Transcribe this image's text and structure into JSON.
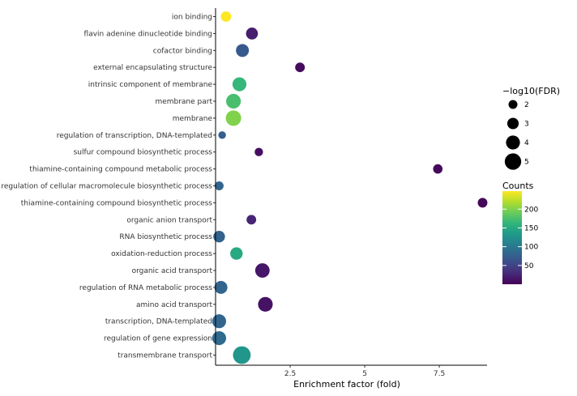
{
  "chart_data": {
    "type": "scatter",
    "title": "",
    "xlabel": "Enrichment factor (fold)",
    "ylabel": "",
    "xlim": [
      0.0,
      9.1
    ],
    "xticks": [
      {
        "value": 2.5,
        "label": "2.5"
      },
      {
        "value": 5.0,
        "label": "5"
      },
      {
        "value": 7.5,
        "label": "7.5"
      }
    ],
    "categories": [
      "ion binding",
      "flavin adenine dinucleotide binding",
      "cofactor binding",
      "external encapsulating structure",
      "intrinsic component of membrane",
      "membrane part",
      "membrane",
      "regulation of transcription, DNA-templated",
      "sulfur compound biosynthetic process",
      "thiamine-containing compound metabolic process",
      "regulation of cellular macromolecule biosynthetic process",
      "thiamine-containing compound biosynthetic process",
      "organic anion transport",
      "RNA biosynthetic process",
      "oxidation-reduction process",
      "organic acid transport",
      "regulation of RNA metabolic process",
      "amino acid transport",
      "transcription, DNA-templated",
      "regulation of gene expression",
      "transmembrane transport"
    ],
    "points": [
      {
        "category": "ion binding",
        "x": 0.35,
        "counts": 248,
        "neglog10FDR": 2.6
      },
      {
        "category": "flavin adenine dinucleotide binding",
        "x": 1.22,
        "counts": 20,
        "neglog10FDR": 3.2
      },
      {
        "category": "cofactor binding",
        "x": 0.9,
        "counts": 70,
        "neglog10FDR": 3.6
      },
      {
        "category": "external encapsulating structure",
        "x": 2.83,
        "counts": 8,
        "neglog10FDR": 2.3
      },
      {
        "category": "intrinsic component of membrane",
        "x": 0.8,
        "counts": 165,
        "neglog10FDR": 4.0
      },
      {
        "category": "membrane part",
        "x": 0.6,
        "counts": 175,
        "neglog10FDR": 4.3
      },
      {
        "category": "membrane",
        "x": 0.6,
        "counts": 200,
        "neglog10FDR": 4.6
      },
      {
        "category": "regulation of transcription, DNA-templated",
        "x": 0.22,
        "counts": 75,
        "neglog10FDR": 1.5
      },
      {
        "category": "sulfur compound biosynthetic process",
        "x": 1.45,
        "counts": 10,
        "neglog10FDR": 1.8
      },
      {
        "category": "thiamine-containing compound metabolic process",
        "x": 7.45,
        "counts": 5,
        "neglog10FDR": 2.2
      },
      {
        "category": "regulation of cellular macromolecule biosynthetic process",
        "x": 0.12,
        "counts": 80,
        "neglog10FDR": 2.0
      },
      {
        "category": "thiamine-containing compound biosynthetic process",
        "x": 8.95,
        "counts": 5,
        "neglog10FDR": 2.3
      },
      {
        "category": "organic anion transport",
        "x": 1.2,
        "counts": 25,
        "neglog10FDR": 2.3
      },
      {
        "category": "RNA biosynthetic process",
        "x": 0.12,
        "counts": 78,
        "neglog10FDR": 3.1
      },
      {
        "category": "oxidation-reduction process",
        "x": 0.7,
        "counts": 150,
        "neglog10FDR": 3.4
      },
      {
        "category": "organic acid transport",
        "x": 1.57,
        "counts": 15,
        "neglog10FDR": 4.2
      },
      {
        "category": "regulation of RNA metabolic process",
        "x": 0.18,
        "counts": 80,
        "neglog10FDR": 3.6
      },
      {
        "category": "amino acid transport",
        "x": 1.67,
        "counts": 12,
        "neglog10FDR": 4.3
      },
      {
        "category": "transcription, DNA-templated",
        "x": 0.12,
        "counts": 80,
        "neglog10FDR": 4.0
      },
      {
        "category": "regulation of gene expression",
        "x": 0.12,
        "counts": 85,
        "neglog10FDR": 4.0
      },
      {
        "category": "transmembrane transport",
        "x": 0.88,
        "counts": 130,
        "neglog10FDR": 5.5
      }
    ],
    "size_legend": {
      "title": "−log10(FDR)",
      "entries": [
        {
          "value": 2,
          "label": "2"
        },
        {
          "value": 3,
          "label": "3"
        },
        {
          "value": 4,
          "label": "4"
        },
        {
          "value": 5,
          "label": "5"
        }
      ]
    },
    "color_legend": {
      "title": "Counts",
      "range": [
        0,
        248
      ],
      "ticks": [
        {
          "value": 50,
          "label": "50"
        },
        {
          "value": 100,
          "label": "100"
        },
        {
          "value": 150,
          "label": "150"
        },
        {
          "value": 200,
          "label": "200"
        }
      ],
      "colormap": [
        "#440154",
        "#482878",
        "#3e4989",
        "#31688e",
        "#26828e",
        "#1f9e89",
        "#35b779",
        "#6ece58",
        "#b5de2b",
        "#fde725"
      ]
    }
  }
}
